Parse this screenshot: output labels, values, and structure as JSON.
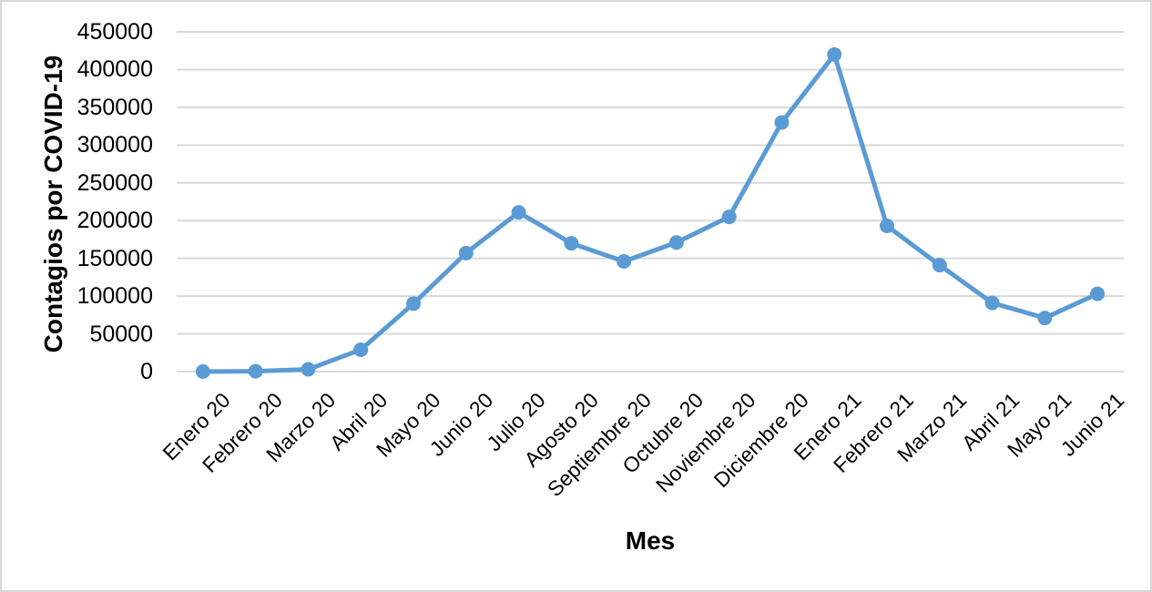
{
  "chart_data": {
    "type": "line",
    "title": "",
    "categories": [
      "Enero 20",
      "Febrero 20",
      "Marzo 20",
      "Abril 20",
      "Mayo 20",
      "Junio 20",
      "Julio 20",
      "Agosto 20",
      "Septiembre 20",
      "Octubre 20",
      "Noviembre 20",
      "Diciembre 20",
      "Enero 21",
      "Febrero 21",
      "Marzo 21",
      "Abril 21",
      "Mayo 21",
      "Junio 21"
    ],
    "values": [
      0,
      500,
      3000,
      29000,
      90000,
      157000,
      211000,
      170000,
      146000,
      171000,
      205000,
      330000,
      420000,
      193000,
      141000,
      91000,
      71000,
      103000
    ],
    "xlabel": "Mes",
    "ylabel": "Contagios por COVID-19",
    "ylim": [
      0,
      450000
    ],
    "ytick_interval": 50000,
    "line_color": "#5B9BD5",
    "marker": "circle",
    "gridlines": "horizontal",
    "legend": "none"
  },
  "style": {
    "grid_color": "#D9D9D9",
    "text_color": "#000000",
    "background": "#FFFFFF",
    "frame_border_color": "#D9D9D9"
  }
}
